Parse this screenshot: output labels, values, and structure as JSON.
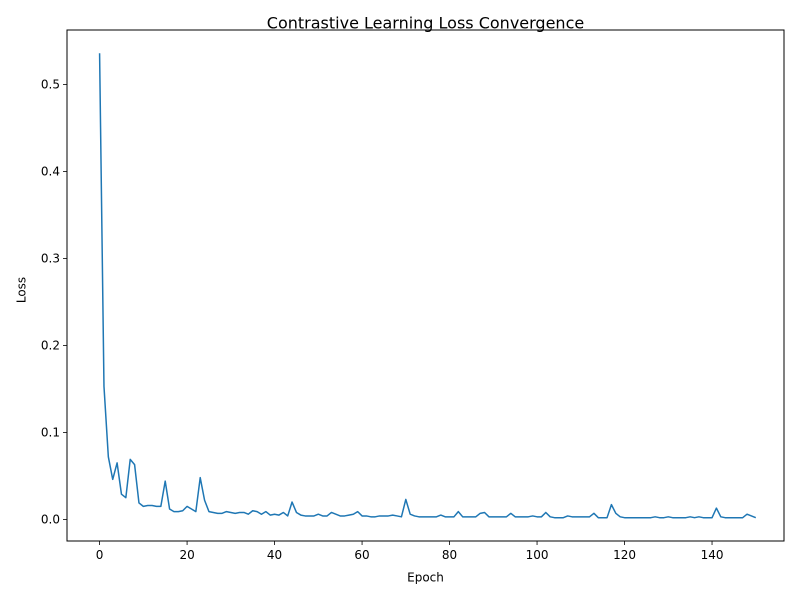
{
  "chart_data": {
    "type": "line",
    "title": "Contrastive Learning Loss Convergence",
    "xlabel": "Epoch",
    "ylabel": "Loss",
    "xlim": [
      -7.45,
      156.45
    ],
    "ylim": [
      -0.0248,
      0.5627
    ],
    "xticks": [
      0,
      20,
      40,
      60,
      80,
      100,
      120,
      140
    ],
    "yticks": [
      0.0,
      0.1,
      0.2,
      0.3,
      0.4,
      0.5
    ],
    "ytick_labels": [
      "0.0",
      "0.1",
      "0.2",
      "0.3",
      "0.4",
      "0.5"
    ],
    "grid": false,
    "legend": "none",
    "line_color": "#1f77b4",
    "series": [
      {
        "values": [
          0.536,
          0.153,
          0.072,
          0.046,
          0.065,
          0.029,
          0.025,
          0.069,
          0.063,
          0.019,
          0.015,
          0.016,
          0.016,
          0.015,
          0.015,
          0.044,
          0.012,
          0.009,
          0.009,
          0.01,
          0.015,
          0.012,
          0.009,
          0.048,
          0.022,
          0.009,
          0.008,
          0.007,
          0.007,
          0.009,
          0.008,
          0.007,
          0.008,
          0.008,
          0.006,
          0.01,
          0.009,
          0.006,
          0.009,
          0.005,
          0.006,
          0.005,
          0.008,
          0.004,
          0.02,
          0.008,
          0.005,
          0.004,
          0.004,
          0.004,
          0.006,
          0.004,
          0.004,
          0.008,
          0.006,
          0.004,
          0.004,
          0.005,
          0.006,
          0.009,
          0.004,
          0.004,
          0.003,
          0.003,
          0.004,
          0.004,
          0.004,
          0.005,
          0.004,
          0.003,
          0.023,
          0.006,
          0.004,
          0.003,
          0.003,
          0.003,
          0.003,
          0.003,
          0.005,
          0.003,
          0.003,
          0.003,
          0.009,
          0.003,
          0.003,
          0.003,
          0.003,
          0.007,
          0.008,
          0.003,
          0.003,
          0.003,
          0.003,
          0.003,
          0.007,
          0.003,
          0.003,
          0.003,
          0.003,
          0.004,
          0.003,
          0.003,
          0.008,
          0.003,
          0.002,
          0.002,
          0.002,
          0.004,
          0.003,
          0.003,
          0.003,
          0.003,
          0.003,
          0.007,
          0.002,
          0.002,
          0.002,
          0.017,
          0.007,
          0.003,
          0.002,
          0.002,
          0.002,
          0.002,
          0.002,
          0.002,
          0.002,
          0.003,
          0.002,
          0.002,
          0.003,
          0.002,
          0.002,
          0.002,
          0.002,
          0.003,
          0.002,
          0.003,
          0.002,
          0.002,
          0.002,
          0.013,
          0.003,
          0.002,
          0.002,
          0.002,
          0.002,
          0.002,
          0.006,
          0.004,
          0.002
        ]
      }
    ]
  }
}
